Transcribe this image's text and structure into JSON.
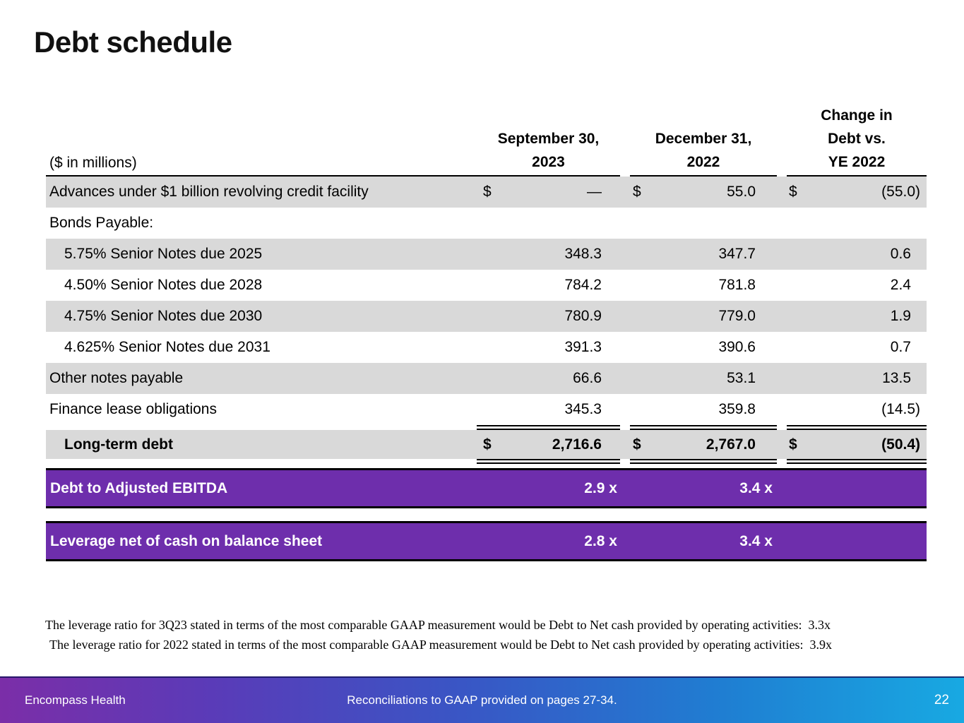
{
  "slide": {
    "title": "Debt schedule"
  },
  "table": {
    "units_label": "($ in millions)",
    "columns": {
      "c1": {
        "l1": "September 30,",
        "l2": "2023"
      },
      "c2": {
        "l1": "December 31,",
        "l2": "2022"
      },
      "c3": {
        "l1": "Change in",
        "l2": "Debt vs.",
        "l3": "YE 2022"
      }
    },
    "rows": [
      {
        "label": "Advances under $1 billion revolving credit facility",
        "d1": "$",
        "v1": "—",
        "d2": "$",
        "v2": "55.0",
        "d3": "$",
        "v3": "(55.0)"
      },
      {
        "label": "Bonds Payable:",
        "v1": "",
        "v2": "",
        "v3": ""
      },
      {
        "label": "5.75% Senior Notes due 2025",
        "v1": "348.3",
        "v2": "347.7",
        "v3": "0.6"
      },
      {
        "label": "4.50% Senior Notes due 2028",
        "v1": "784.2",
        "v2": "781.8",
        "v3": "2.4"
      },
      {
        "label": "4.75% Senior Notes due 2030",
        "v1": "780.9",
        "v2": "779.0",
        "v3": "1.9"
      },
      {
        "label": "4.625% Senior Notes due 2031",
        "v1": "391.3",
        "v2": "390.6",
        "v3": "0.7"
      },
      {
        "label": "Other notes payable",
        "v1": "66.6",
        "v2": "53.1",
        "v3": "13.5"
      },
      {
        "label": "Finance lease obligations",
        "v1": "345.3",
        "v2": "359.8",
        "v3": "(14.5)"
      }
    ],
    "total_row": {
      "label": "Long-term debt",
      "d1": "$",
      "v1": "2,716.6",
      "d2": "$",
      "v2": "2,767.0",
      "d3": "$",
      "v3": "(50.4)"
    }
  },
  "banners": [
    {
      "label": "Debt to Adjusted EBITDA",
      "v1": "2.9 x",
      "v2": "3.4 x"
    },
    {
      "label": "Leverage net of cash on balance sheet",
      "v1": "2.8 x",
      "v2": "3.4 x"
    }
  ],
  "footnotes": [
    "The leverage ratio for 3Q23 stated in terms of the most comparable GAAP measurement would be Debt to Net cash provided by operating activities:  3.3x",
    "The leverage ratio for 2022 stated in terms of the most comparable GAAP measurement would be Debt to Net cash provided by operating activities:  3.9x"
  ],
  "footer": {
    "left": "Encompass Health",
    "center": "Reconciliations to GAAP provided on pages 27-34.",
    "page_number": "22"
  },
  "colors": {
    "banner_purple": "#6E2EAC",
    "row_shade_gray": "#D9D9D9",
    "footer_gradient_left": "#7B2EA8",
    "footer_gradient_mid": "#3956C5",
    "footer_gradient_right": "#18A9E2",
    "banner_text": "#FFFFFF",
    "table_text": "#000000"
  }
}
